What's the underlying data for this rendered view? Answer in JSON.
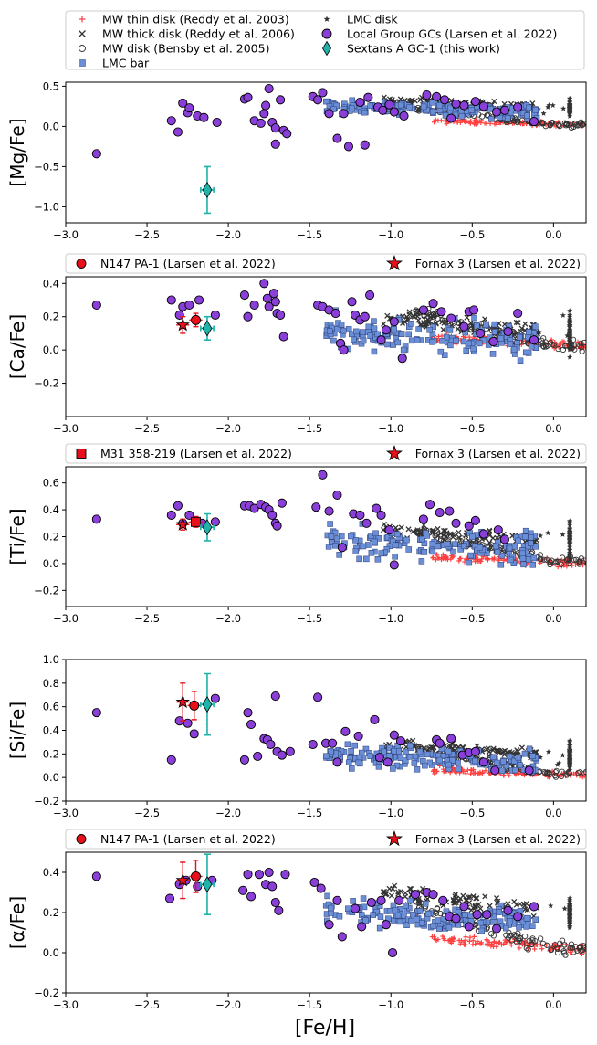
{
  "figure": {
    "xlabel": "[Fe/H]",
    "xticks": [
      -3.0,
      -2.5,
      -2.0,
      -1.5,
      -1.0,
      -0.5,
      0.0
    ],
    "xlim": [
      -3.0,
      0.2
    ]
  },
  "legend_main": [
    {
      "label": "MW thin disk (Reddy et al. 2003)",
      "marker": "plus",
      "color": "#ff4d4d"
    },
    {
      "label": "MW thick disk (Reddy et al. 2006)",
      "marker": "x",
      "color": "#333333"
    },
    {
      "label": "MW disk (Bensby et al. 2005)",
      "marker": "circle-open",
      "color": "#333333"
    },
    {
      "label": "LMC bar",
      "marker": "square",
      "color": "#6b8fd6"
    },
    {
      "label": "LMC disk",
      "marker": "star-small",
      "color": "#333333"
    },
    {
      "label": "Local Group GCs (Larsen et al. 2022)",
      "marker": "circle",
      "color": "#8a3fd9"
    },
    {
      "label": "Sextans A GC-1 (this work)",
      "marker": "diamond",
      "color": "#1fb3aa"
    }
  ],
  "colors": {
    "thin": "#ff4040",
    "thick": "#333333",
    "bensby": "#333333",
    "lmcbar": "#6b8fd6",
    "lmcdisk": "#333333",
    "gc": "#8a3fd9",
    "sextans": "#1fb3aa",
    "red": "#e8101a"
  },
  "chart_data": [
    {
      "type": "scatter",
      "ylabel": "[Mg/Fe]",
      "ylim": [
        -1.2,
        0.55
      ],
      "yticks": [
        -1.0,
        -0.5,
        0.0,
        0.5
      ],
      "subleg": [],
      "gcs": [
        [
          -2.81,
          -0.34
        ],
        [
          -2.35,
          0.07
        ],
        [
          -2.31,
          -0.07
        ],
        [
          -2.28,
          0.29
        ],
        [
          -2.25,
          0.17
        ],
        [
          -2.24,
          0.23
        ],
        [
          -2.19,
          0.13
        ],
        [
          -2.15,
          0.11
        ],
        [
          -2.07,
          0.05
        ],
        [
          -1.9,
          0.34
        ],
        [
          -1.88,
          0.36
        ],
        [
          -1.84,
          0.07
        ],
        [
          -1.8,
          0.04
        ],
        [
          -1.78,
          0.16
        ],
        [
          -1.77,
          0.26
        ],
        [
          -1.75,
          0.47
        ],
        [
          -1.73,
          0.05
        ],
        [
          -1.71,
          -0.02
        ],
        [
          -1.71,
          -0.22
        ],
        [
          -1.68,
          0.33
        ],
        [
          -1.66,
          -0.05
        ],
        [
          -1.64,
          -0.09
        ],
        [
          -1.48,
          0.37
        ],
        [
          -1.45,
          0.33
        ],
        [
          -1.42,
          0.42
        ],
        [
          -1.38,
          0.16
        ],
        [
          -1.33,
          -0.15
        ],
        [
          -1.29,
          0.16
        ],
        [
          -1.26,
          -0.25
        ],
        [
          -1.19,
          0.3
        ],
        [
          -1.16,
          -0.23
        ],
        [
          -1.14,
          0.36
        ],
        [
          -1.08,
          0.24
        ],
        [
          -1.05,
          0.2
        ],
        [
          -1.01,
          0.27
        ],
        [
          -0.98,
          0.18
        ],
        [
          -0.92,
          0.13
        ],
        [
          -0.78,
          0.39
        ],
        [
          -0.72,
          0.37
        ],
        [
          -0.67,
          0.33
        ],
        [
          -0.63,
          0.1
        ],
        [
          -0.6,
          0.28
        ],
        [
          -0.55,
          0.26
        ],
        [
          -0.48,
          0.31
        ],
        [
          -0.43,
          0.25
        ],
        [
          -0.35,
          0.18
        ],
        [
          -0.3,
          0.2
        ],
        [
          -0.22,
          0.24
        ],
        [
          -0.12,
          0.06
        ]
      ],
      "sextans": {
        "x": -2.13,
        "y": -0.79,
        "xerr": 0.04,
        "yerr": 0.29
      },
      "specials": []
    },
    {
      "type": "scatter",
      "ylabel": "[Ca/Fe]",
      "ylim": [
        -0.4,
        0.44
      ],
      "yticks": [
        -0.2,
        0.0,
        0.2,
        0.4
      ],
      "subleg": [
        {
          "label": "N147 PA-1 (Larsen et al. 2022)",
          "marker": "circle"
        },
        {
          "label": "Fornax 3 (Larsen et al. 2022)",
          "marker": "star"
        }
      ],
      "gcs": [
        [
          -2.81,
          0.27
        ],
        [
          -2.35,
          0.3
        ],
        [
          -2.3,
          0.21
        ],
        [
          -2.28,
          0.26
        ],
        [
          -2.24,
          0.27
        ],
        [
          -2.18,
          0.3
        ],
        [
          -2.08,
          0.21
        ],
        [
          -1.9,
          0.33
        ],
        [
          -1.88,
          0.2
        ],
        [
          -1.84,
          0.27
        ],
        [
          -1.78,
          0.4
        ],
        [
          -1.76,
          0.31
        ],
        [
          -1.75,
          0.26
        ],
        [
          -1.72,
          0.34
        ],
        [
          -1.71,
          0.29
        ],
        [
          -1.7,
          0.22
        ],
        [
          -1.68,
          0.21
        ],
        [
          -1.66,
          0.08
        ],
        [
          -1.45,
          0.27
        ],
        [
          -1.42,
          0.26
        ],
        [
          -1.38,
          0.24
        ],
        [
          -1.34,
          0.22
        ],
        [
          -1.31,
          0.04
        ],
        [
          -1.29,
          0.0
        ],
        [
          -1.24,
          0.29
        ],
        [
          -1.22,
          0.21
        ],
        [
          -1.19,
          0.18
        ],
        [
          -1.16,
          0.2
        ],
        [
          -1.13,
          0.33
        ],
        [
          -1.06,
          0.06
        ],
        [
          -1.03,
          0.12
        ],
        [
          -0.98,
          0.17
        ],
        [
          -0.93,
          -0.05
        ],
        [
          -0.8,
          0.24
        ],
        [
          -0.74,
          0.28
        ],
        [
          -0.69,
          0.23
        ],
        [
          -0.63,
          0.19
        ],
        [
          -0.55,
          0.14
        ],
        [
          -0.52,
          0.23
        ],
        [
          -0.49,
          0.24
        ],
        [
          -0.45,
          0.1
        ],
        [
          -0.37,
          0.05
        ],
        [
          -0.28,
          0.11
        ],
        [
          -0.22,
          0.22
        ],
        [
          -0.12,
          0.06
        ]
      ],
      "sextans": {
        "x": -2.13,
        "y": 0.13,
        "xerr": 0.04,
        "yerr": 0.07
      },
      "specials": [
        {
          "shape": "star",
          "x": -2.28,
          "y": 0.15,
          "xerr": 0.04,
          "yerr": 0.05
        },
        {
          "shape": "circle",
          "x": -2.2,
          "y": 0.18,
          "xerr": 0.04,
          "yerr": 0.04
        }
      ]
    },
    {
      "type": "scatter",
      "ylabel": "[Ti/Fe]",
      "ylim": [
        -0.32,
        0.72
      ],
      "yticks": [
        -0.2,
        0.0,
        0.2,
        0.4,
        0.6
      ],
      "subleg": [
        {
          "label": "M31 358-219 (Larsen et al. 2022)",
          "marker": "square"
        },
        {
          "label": "Fornax 3 (Larsen et al. 2022)",
          "marker": "star"
        }
      ],
      "gcs": [
        [
          -2.81,
          0.33
        ],
        [
          -2.35,
          0.36
        ],
        [
          -2.31,
          0.43
        ],
        [
          -2.28,
          0.3
        ],
        [
          -2.24,
          0.36
        ],
        [
          -2.16,
          0.3
        ],
        [
          -2.08,
          0.31
        ],
        [
          -1.9,
          0.43
        ],
        [
          -1.87,
          0.43
        ],
        [
          -1.84,
          0.41
        ],
        [
          -1.8,
          0.44
        ],
        [
          -1.77,
          0.42
        ],
        [
          -1.75,
          0.4
        ],
        [
          -1.73,
          0.36
        ],
        [
          -1.71,
          0.3
        ],
        [
          -1.7,
          0.28
        ],
        [
          -1.67,
          0.45
        ],
        [
          -1.46,
          0.42
        ],
        [
          -1.42,
          0.66
        ],
        [
          -1.38,
          0.39
        ],
        [
          -1.33,
          0.51
        ],
        [
          -1.3,
          0.12
        ],
        [
          -1.23,
          0.37
        ],
        [
          -1.19,
          0.36
        ],
        [
          -1.15,
          0.3
        ],
        [
          -1.09,
          0.41
        ],
        [
          -1.06,
          0.36
        ],
        [
          -1.01,
          0.25
        ],
        [
          -0.98,
          -0.01
        ],
        [
          -0.8,
          0.33
        ],
        [
          -0.76,
          0.44
        ],
        [
          -0.7,
          0.38
        ],
        [
          -0.64,
          0.39
        ],
        [
          -0.6,
          0.3
        ],
        [
          -0.52,
          0.28
        ],
        [
          -0.48,
          0.32
        ],
        [
          -0.43,
          0.22
        ],
        [
          -0.34,
          0.25
        ],
        [
          -0.3,
          0.18
        ]
      ],
      "sextans": {
        "x": -2.13,
        "y": 0.27,
        "xerr": 0.04,
        "yerr": 0.1
      },
      "specials": [
        {
          "shape": "star",
          "x": -2.28,
          "y": 0.29,
          "xerr": 0.04,
          "yerr": 0.04
        },
        {
          "shape": "square",
          "x": -2.2,
          "y": 0.31,
          "xerr": 0.04,
          "yerr": 0.04
        }
      ]
    },
    {
      "type": "scatter",
      "ylabel": "[Si/Fe]",
      "ylim": [
        -0.2,
        1.0
      ],
      "yticks": [
        -0.2,
        0.0,
        0.2,
        0.4,
        0.6,
        0.8,
        1.0
      ],
      "subleg": [],
      "gcs": [
        [
          -2.81,
          0.55
        ],
        [
          -2.35,
          0.15
        ],
        [
          -2.3,
          0.48
        ],
        [
          -2.25,
          0.46
        ],
        [
          -2.21,
          0.37
        ],
        [
          -2.08,
          0.67
        ],
        [
          -1.9,
          0.15
        ],
        [
          -1.88,
          0.55
        ],
        [
          -1.86,
          0.45
        ],
        [
          -1.82,
          0.18
        ],
        [
          -1.78,
          0.33
        ],
        [
          -1.76,
          0.32
        ],
        [
          -1.74,
          0.28
        ],
        [
          -1.71,
          0.69
        ],
        [
          -1.7,
          0.22
        ],
        [
          -1.67,
          0.19
        ],
        [
          -1.62,
          0.22
        ],
        [
          -1.48,
          0.28
        ],
        [
          -1.45,
          0.68
        ],
        [
          -1.4,
          0.29
        ],
        [
          -1.36,
          0.29
        ],
        [
          -1.33,
          0.13
        ],
        [
          -1.28,
          0.39
        ],
        [
          -1.2,
          0.35
        ],
        [
          -1.1,
          0.49
        ],
        [
          -1.07,
          0.17
        ],
        [
          -1.02,
          0.13
        ],
        [
          -0.98,
          0.36
        ],
        [
          -0.94,
          0.31
        ],
        [
          -0.72,
          0.32
        ],
        [
          -0.7,
          0.29
        ],
        [
          -0.63,
          0.33
        ],
        [
          -0.56,
          0.19
        ],
        [
          -0.52,
          0.21
        ],
        [
          -0.48,
          0.22
        ],
        [
          -0.43,
          0.13
        ],
        [
          -0.36,
          0.06
        ],
        [
          -0.15,
          0.06
        ]
      ],
      "sextans": {
        "x": -2.13,
        "y": 0.62,
        "xerr": 0.04,
        "yerr": 0.26
      },
      "specials": [
        {
          "shape": "star",
          "x": -2.28,
          "y": 0.64,
          "xerr": 0.04,
          "yerr": 0.16
        },
        {
          "shape": "circle",
          "x": -2.21,
          "y": 0.61,
          "xerr": 0.04,
          "yerr": 0.12
        }
      ]
    },
    {
      "type": "scatter",
      "ylabel": "[α/Fe]",
      "ylim": [
        -0.2,
        0.5
      ],
      "yticks": [
        -0.2,
        0.0,
        0.2,
        0.4
      ],
      "subleg": [
        {
          "label": "N147 PA-1 (Larsen et al. 2022)",
          "marker": "circle"
        },
        {
          "label": "Fornax 3 (Larsen et al. 2022)",
          "marker": "star"
        }
      ],
      "gcs": [
        [
          -2.81,
          0.38
        ],
        [
          -2.36,
          0.27
        ],
        [
          -2.3,
          0.34
        ],
        [
          -2.26,
          0.36
        ],
        [
          -2.19,
          0.33
        ],
        [
          -2.1,
          0.36
        ],
        [
          -1.91,
          0.31
        ],
        [
          -1.88,
          0.39
        ],
        [
          -1.86,
          0.28
        ],
        [
          -1.81,
          0.39
        ],
        [
          -1.77,
          0.34
        ],
        [
          -1.75,
          0.4
        ],
        [
          -1.73,
          0.33
        ],
        [
          -1.71,
          0.25
        ],
        [
          -1.69,
          0.21
        ],
        [
          -1.65,
          0.39
        ],
        [
          -1.47,
          0.35
        ],
        [
          -1.43,
          0.32
        ],
        [
          -1.38,
          0.14
        ],
        [
          -1.33,
          0.26
        ],
        [
          -1.3,
          0.08
        ],
        [
          -1.22,
          0.22
        ],
        [
          -1.18,
          0.13
        ],
        [
          -1.12,
          0.25
        ],
        [
          -1.06,
          0.26
        ],
        [
          -1.03,
          0.14
        ],
        [
          -0.99,
          0.0
        ],
        [
          -0.95,
          0.26
        ],
        [
          -0.85,
          0.29
        ],
        [
          -0.78,
          0.3
        ],
        [
          -0.74,
          0.29
        ],
        [
          -0.68,
          0.26
        ],
        [
          -0.64,
          0.18
        ],
        [
          -0.6,
          0.17
        ],
        [
          -0.55,
          0.23
        ],
        [
          -0.52,
          0.13
        ],
        [
          -0.47,
          0.19
        ],
        [
          -0.41,
          0.19
        ],
        [
          -0.35,
          0.12
        ],
        [
          -0.28,
          0.21
        ],
        [
          -0.22,
          0.18
        ],
        [
          -0.12,
          0.23
        ]
      ],
      "sextans": {
        "x": -2.13,
        "y": 0.34,
        "xerr": 0.04,
        "yerr": 0.15
      },
      "specials": [
        {
          "shape": "star",
          "x": -2.28,
          "y": 0.36,
          "xerr": 0.04,
          "yerr": 0.09
        },
        {
          "shape": "circle",
          "x": -2.2,
          "y": 0.38,
          "xerr": 0.04,
          "yerr": 0.08
        }
      ]
    }
  ]
}
